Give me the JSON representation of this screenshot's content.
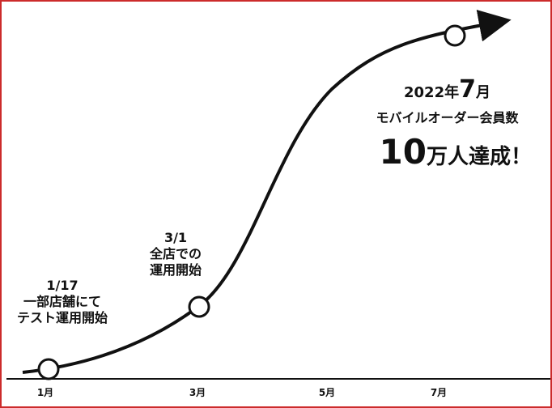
{
  "chart_data": {
    "type": "line",
    "x_ticks": [
      "1月",
      "3月",
      "5月",
      "7月"
    ],
    "annotations": [
      {
        "id": "jan",
        "lines": [
          "1/17",
          "一部店舗にて",
          "テスト運用開始"
        ]
      },
      {
        "id": "mar",
        "lines": [
          "3/1",
          "全店での",
          "運用開始"
        ]
      },
      {
        "id": "jul",
        "line1_pre": "2022年",
        "line1_big": "7",
        "line1_post": "月",
        "line2": "モバイルオーダー会員数",
        "line3_big": "10",
        "line3_post": "万人達成！"
      }
    ],
    "milestones": [
      {
        "label": "1/17"
      },
      {
        "label": "3/1"
      },
      {
        "label": "2022年7月"
      }
    ],
    "colors": {
      "curve": "#111111",
      "border": "#cc2b2b",
      "marker_fill": "#ffffff"
    },
    "grid": false
  }
}
